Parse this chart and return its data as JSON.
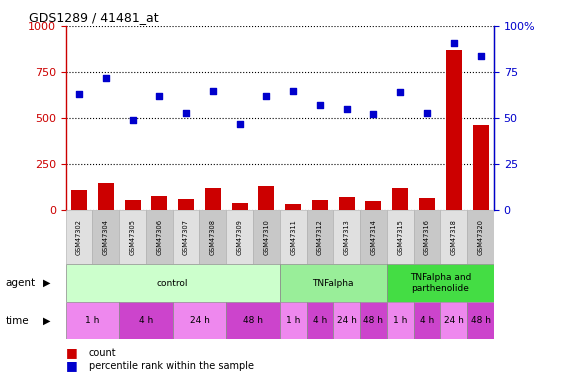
{
  "title": "GDS1289 / 41481_at",
  "samples": [
    "GSM47302",
    "GSM47304",
    "GSM47305",
    "GSM47306",
    "GSM47307",
    "GSM47308",
    "GSM47309",
    "GSM47310",
    "GSM47311",
    "GSM47312",
    "GSM47313",
    "GSM47314",
    "GSM47315",
    "GSM47316",
    "GSM47318",
    "GSM47320"
  ],
  "counts": [
    110,
    145,
    55,
    75,
    60,
    120,
    40,
    130,
    35,
    55,
    70,
    50,
    120,
    65,
    870,
    460
  ],
  "percentile": [
    63,
    72,
    49,
    62,
    53,
    65,
    47,
    62,
    65,
    57,
    55,
    52,
    64,
    53,
    91,
    84
  ],
  "agent_groups": [
    {
      "label": "control",
      "start": 0,
      "end": 8,
      "color": "#ccffcc"
    },
    {
      "label": "TNFalpha",
      "start": 8,
      "end": 12,
      "color": "#99ee99"
    },
    {
      "label": "TNFalpha and\nparthenolide",
      "start": 12,
      "end": 16,
      "color": "#44dd44"
    }
  ],
  "time_groups": [
    {
      "label": "1 h",
      "start": 0,
      "end": 2,
      "color": "#ee88ee"
    },
    {
      "label": "4 h",
      "start": 2,
      "end": 4,
      "color": "#cc44cc"
    },
    {
      "label": "24 h",
      "start": 4,
      "end": 6,
      "color": "#ee88ee"
    },
    {
      "label": "48 h",
      "start": 6,
      "end": 8,
      "color": "#cc44cc"
    },
    {
      "label": "1 h",
      "start": 8,
      "end": 9,
      "color": "#ee88ee"
    },
    {
      "label": "4 h",
      "start": 9,
      "end": 10,
      "color": "#cc44cc"
    },
    {
      "label": "24 h",
      "start": 10,
      "end": 11,
      "color": "#ee88ee"
    },
    {
      "label": "48 h",
      "start": 11,
      "end": 12,
      "color": "#cc44cc"
    },
    {
      "label": "1 h",
      "start": 12,
      "end": 13,
      "color": "#ee88ee"
    },
    {
      "label": "4 h",
      "start": 13,
      "end": 14,
      "color": "#cc44cc"
    },
    {
      "label": "24 h",
      "start": 14,
      "end": 15,
      "color": "#ee88ee"
    },
    {
      "label": "48 h",
      "start": 15,
      "end": 16,
      "color": "#cc44cc"
    }
  ],
  "bar_color": "#cc0000",
  "scatter_color": "#0000cc",
  "ylim_left": [
    0,
    1000
  ],
  "ylim_right": [
    0,
    100
  ],
  "yticks_left": [
    0,
    250,
    500,
    750,
    1000
  ],
  "yticks_right": [
    0,
    25,
    50,
    75,
    100
  ],
  "ytick_right_labels": [
    "0",
    "25",
    "50",
    "75",
    "100%"
  ],
  "background_color": "#ffffff"
}
